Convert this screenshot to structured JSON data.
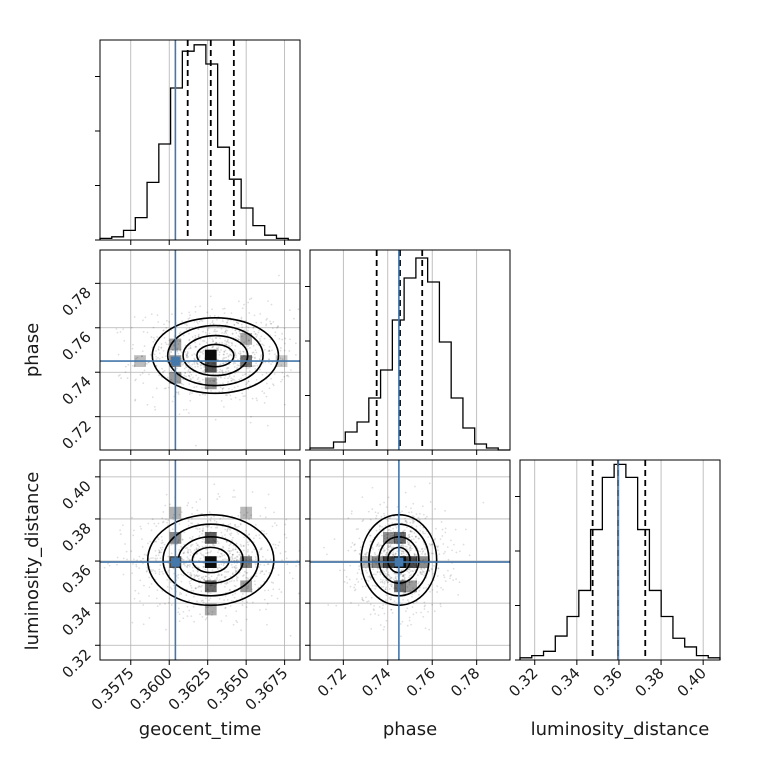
{
  "chart_data": {
    "type": "corner",
    "truth_color": "#4477aa",
    "params": [
      {
        "name": "geocent_time",
        "axis_label": "geocent_time",
        "range": [
          0.3555,
          0.3685
        ],
        "ticks": [
          0.3575,
          0.36,
          0.3625,
          0.365,
          0.3675
        ],
        "tick_labels": [
          "0.3575",
          "0.3600",
          "0.3625",
          "0.3650",
          "0.3675"
        ],
        "truth": 0.3604,
        "quantiles": [
          0.3612,
          0.3627,
          0.3642
        ],
        "hist": [
          1,
          2,
          6,
          14,
          36,
          60,
          95,
          118,
          122,
          110,
          58,
          38,
          20,
          9,
          3,
          1,
          0
        ],
        "hist_max": 125
      },
      {
        "name": "phase",
        "axis_label": "phase",
        "range": [
          0.705,
          0.795
        ],
        "ticks": [
          0.72,
          0.74,
          0.76,
          0.78
        ],
        "tick_labels": [
          "0.72",
          "0.74",
          "0.76",
          "0.78"
        ],
        "truth": 0.745,
        "quantiles": [
          0.735,
          0.7455,
          0.7555
        ],
        "hist": [
          1,
          1,
          4,
          9,
          14,
          26,
          40,
          65,
          86,
          96,
          84,
          54,
          26,
          11,
          3,
          1,
          0
        ],
        "hist_max": 100
      },
      {
        "name": "luminosity_distance",
        "axis_label": "luminosity_distance",
        "range": [
          0.313,
          0.408
        ],
        "ticks": [
          0.32,
          0.34,
          0.36,
          0.38,
          0.4
        ],
        "tick_labels": [
          "0.32",
          "0.34",
          "0.36",
          "0.38",
          "0.40"
        ],
        "truth": 0.3595,
        "quantiles": [
          0.3475,
          0.3595,
          0.3725
        ],
        "hist": [
          1,
          2,
          4,
          11,
          20,
          32,
          60,
          84,
          90,
          84,
          60,
          32,
          20,
          10,
          6,
          2,
          1
        ],
        "hist_max": 92
      }
    ],
    "panels_2d": [
      {
        "x_param": "geocent_time",
        "y_param": "phase",
        "x_values": [
          0.3604,
          0.3627,
          0.365,
          0.3627,
          0.3604,
          0.3627,
          0.3604,
          0.365,
          0.3581,
          0.3673
        ],
        "y_values": [
          0.745,
          0.7475,
          0.745,
          0.7425,
          0.7525,
          0.735,
          0.7375,
          0.755,
          0.745,
          0.745
        ],
        "bin_counts": [
          30,
          90,
          45,
          60,
          25,
          30,
          28,
          22,
          12,
          8
        ],
        "centroid": [
          0.363,
          0.7475
        ],
        "contour_spread": [
          [
            0.0012,
            0.005
          ],
          [
            0.0021,
            0.009
          ],
          [
            0.0031,
            0.0135
          ],
          [
            0.0041,
            0.017
          ]
        ],
        "scatter_sd": [
          0.0025,
          0.0105
        ]
      },
      {
        "x_param": "geocent_time",
        "y_param": "luminosity_distance",
        "x_values": [
          0.3627,
          0.3604,
          0.365,
          0.3627,
          0.3604,
          0.365,
          0.3627,
          0.3604,
          0.365,
          0.3627
        ],
        "y_values": [
          0.3595,
          0.3595,
          0.3595,
          0.371,
          0.371,
          0.348,
          0.348,
          0.383,
          0.383,
          0.337
        ],
        "bin_counts": [
          100,
          70,
          45,
          60,
          40,
          30,
          55,
          20,
          15,
          22
        ],
        "centroid": [
          0.3627,
          0.3605
        ],
        "contour_spread": [
          [
            0.0012,
            0.006
          ],
          [
            0.0021,
            0.011
          ],
          [
            0.0031,
            0.017
          ],
          [
            0.0041,
            0.0215
          ]
        ],
        "scatter_sd": [
          0.0025,
          0.0125
        ]
      },
      {
        "x_param": "phase",
        "y_param": "luminosity_distance",
        "x_values": [
          0.7455,
          0.7405,
          0.7505,
          0.7455,
          0.7355,
          0.7555,
          0.7455,
          0.7405,
          0.7505,
          0.7305
        ],
        "y_values": [
          0.3595,
          0.3595,
          0.3595,
          0.371,
          0.3595,
          0.3595,
          0.348,
          0.371,
          0.348,
          0.3595
        ],
        "bin_counts": [
          100,
          75,
          70,
          55,
          40,
          38,
          55,
          35,
          30,
          15
        ],
        "centroid": [
          0.745,
          0.3605
        ],
        "contour_spread": [
          [
            0.005,
            0.006
          ],
          [
            0.009,
            0.011
          ],
          [
            0.0135,
            0.017
          ],
          [
            0.017,
            0.0215
          ]
        ],
        "scatter_sd": [
          0.0105,
          0.0125
        ]
      }
    ]
  }
}
